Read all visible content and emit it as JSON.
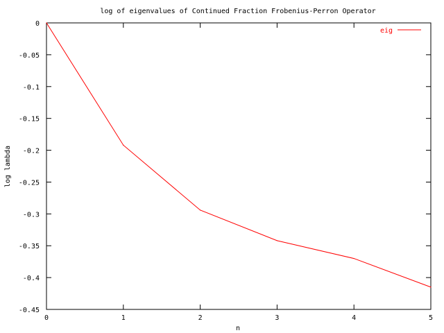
{
  "chart_data": {
    "type": "line",
    "title": "log of eigenvalues of Continued Fraction Frobenius-Perron Operator",
    "xlabel": "n",
    "ylabel": "log lambda",
    "xlim": [
      0,
      5
    ],
    "ylim": [
      -0.45,
      0
    ],
    "xticks": [
      "0",
      "1",
      "2",
      "3",
      "4",
      "5"
    ],
    "yticks": [
      "0",
      "-0.05",
      "-0.1",
      "-0.15",
      "-0.2",
      "-0.25",
      "-0.3",
      "-0.35",
      "-0.4",
      "-0.45"
    ],
    "grid": false,
    "legend_position": "top-right",
    "series": [
      {
        "name": "eig",
        "color": "#ff0000",
        "x": [
          0,
          1,
          2,
          3,
          4,
          5
        ],
        "y": [
          0,
          -0.192,
          -0.294,
          -0.342,
          -0.37,
          -0.415
        ]
      }
    ]
  }
}
